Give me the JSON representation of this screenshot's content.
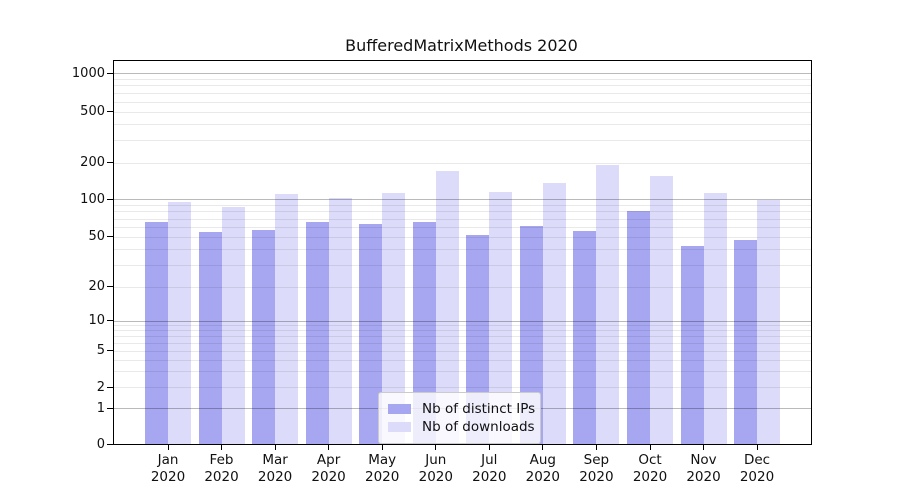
{
  "title": "BufferedMatrixMethods 2020",
  "chart_data": {
    "type": "bar",
    "title": "BufferedMatrixMethods 2020",
    "categories": [
      "Jan",
      "Feb",
      "Mar",
      "Apr",
      "May",
      "Jun",
      "Jul",
      "Aug",
      "Sep",
      "Oct",
      "Nov",
      "Dec"
    ],
    "category_year": "2020",
    "series": [
      {
        "name": "Nb of distinct IPs",
        "color": "#a7a7f1",
        "values": [
          66,
          55,
          57,
          66,
          63,
          66,
          52,
          61,
          56,
          80,
          42,
          47
        ]
      },
      {
        "name": "Nb of downloads",
        "color": "#dcdcfa",
        "values": [
          95,
          87,
          111,
          102,
          113,
          172,
          115,
          137,
          190,
          155,
          112,
          98
        ]
      }
    ],
    "y_ticks": [
      0,
      1,
      2,
      5,
      10,
      20,
      50,
      100,
      200,
      500,
      1000
    ],
    "yscale": "log (symlog-like, 0 at baseline)",
    "ylim": [
      0,
      1250
    ],
    "grid": "minor log gridlines light gray, decade gridlines darker gray, drawn over bars",
    "legend_position": "lower center inside plot",
    "bar_layout": "pairs side by side, distinct-IPs bar left of downloads bar"
  },
  "colors": {
    "bar_distinct_ips": "#a7a7f1",
    "bar_downloads": "#dcdcfa",
    "axis": "#000000",
    "text": "#111111",
    "legend_border": "#cbcbcb",
    "legend_background": "rgba(255,255,255,0.8)"
  }
}
